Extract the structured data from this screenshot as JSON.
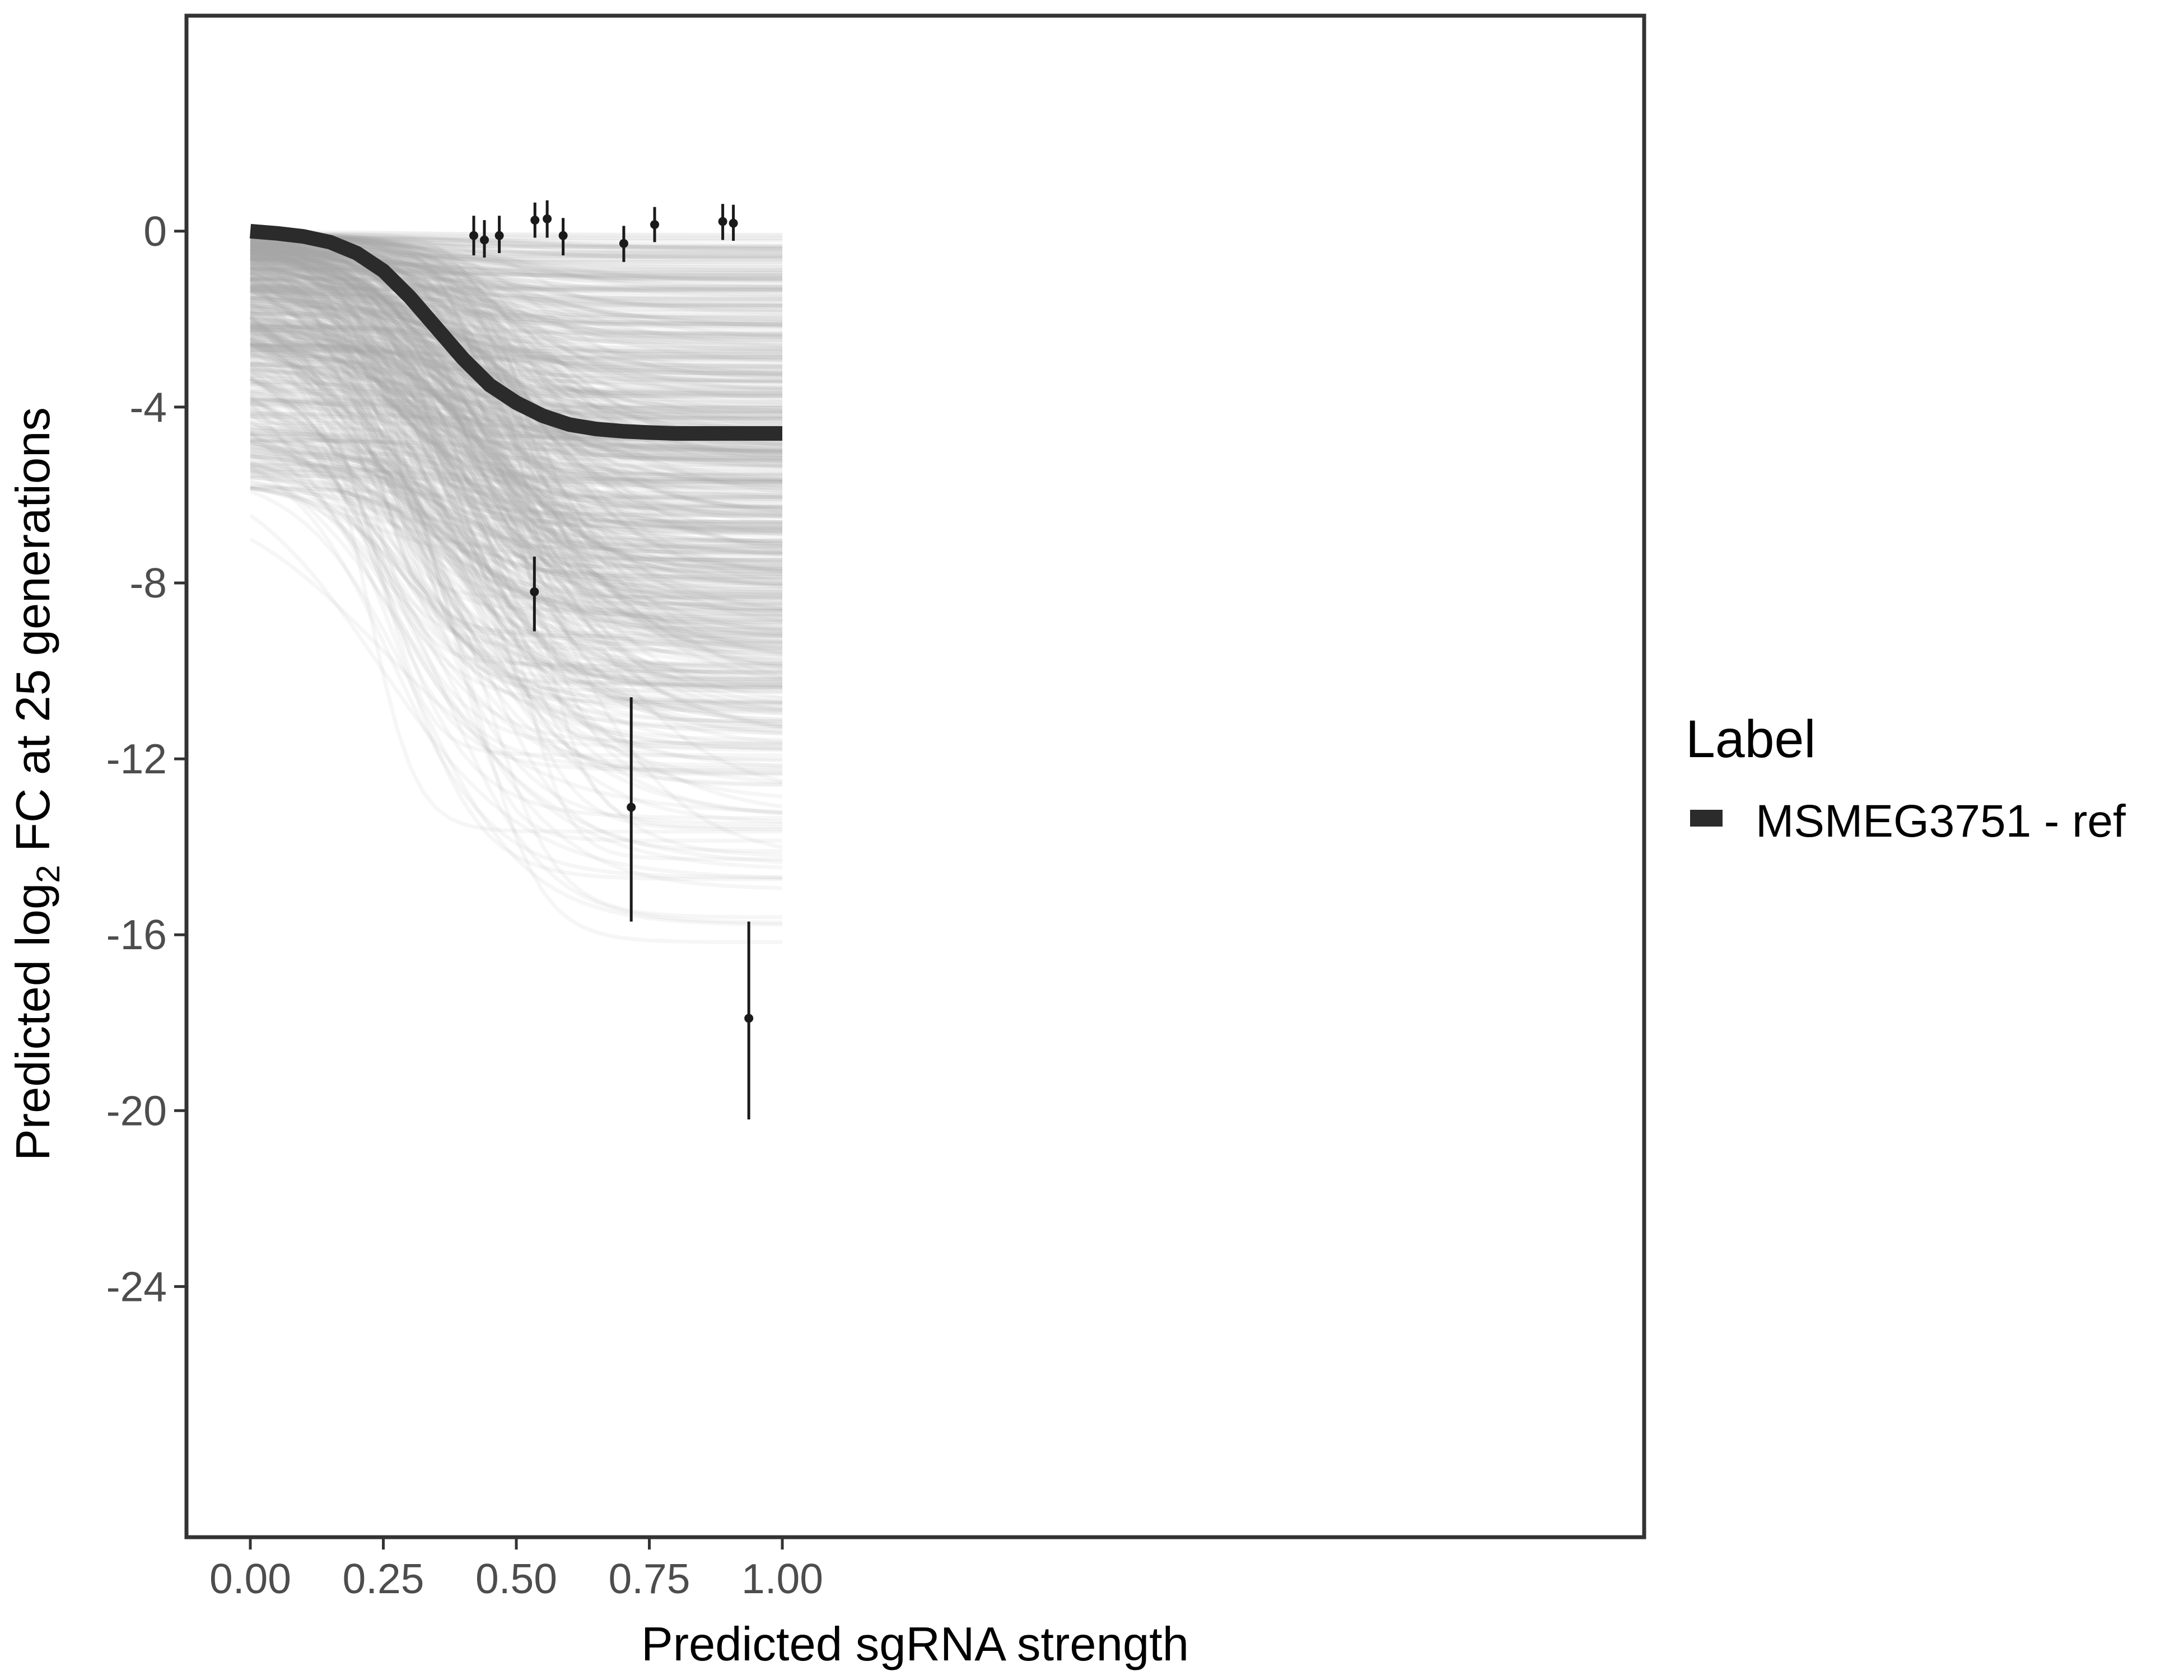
{
  "chart_data": {
    "type": "line",
    "xlabel": "Predicted sgRNA strength",
    "ylabel": {
      "prefix": "Predicted  log",
      "subscript": "2",
      "suffix": " FC at 25 generations"
    },
    "xlim": [
      -0.12,
      2.62
    ],
    "ylim": [
      -29.7,
      4.9
    ],
    "x_ticks": [
      "0.00",
      "0.25",
      "0.50",
      "0.75",
      "1.00"
    ],
    "x_tick_values": [
      0,
      0.25,
      0.5,
      0.75,
      1.0
    ],
    "y_ticks": [
      "0",
      "-4",
      "-8",
      "-12",
      "-16",
      "-20",
      "-24"
    ],
    "y_tick_values": [
      0,
      -4,
      -8,
      -12,
      -16,
      -20,
      -24
    ],
    "grid": false,
    "legend": {
      "title": "Label",
      "position": "right",
      "entries": [
        {
          "label": "MSMEG3751 - ref",
          "color": "#2b2b2b"
        }
      ]
    },
    "series": [
      {
        "name": "MSMEG3751 - ref",
        "color": "#2b2b2b",
        "x": [
          0,
          0.05,
          0.1,
          0.15,
          0.2,
          0.25,
          0.3,
          0.35,
          0.4,
          0.45,
          0.5,
          0.55,
          0.6,
          0.65,
          0.7,
          0.75,
          0.8,
          0.85,
          0.9,
          0.95,
          1.0
        ],
        "y": [
          0,
          -0.05,
          -0.12,
          -0.25,
          -0.5,
          -0.9,
          -1.5,
          -2.2,
          -2.9,
          -3.5,
          -3.9,
          -4.2,
          -4.4,
          -4.5,
          -4.55,
          -4.58,
          -4.6,
          -4.6,
          -4.6,
          -4.6,
          -4.6
        ]
      }
    ],
    "posterior_draws": {
      "description_color": "#a8a8a8",
      "count": 700
    },
    "points": [
      {
        "x": 0.42,
        "y": -0.1,
        "ymin": -0.55,
        "ymax": 0.35
      },
      {
        "x": 0.44,
        "y": -0.2,
        "ymin": -0.6,
        "ymax": 0.25
      },
      {
        "x": 0.468,
        "y": -0.1,
        "ymin": -0.5,
        "ymax": 0.35
      },
      {
        "x": 0.535,
        "y": 0.25,
        "ymin": -0.15,
        "ymax": 0.65
      },
      {
        "x": 0.558,
        "y": 0.28,
        "ymin": -0.15,
        "ymax": 0.7
      },
      {
        "x": 0.588,
        "y": -0.1,
        "ymin": -0.55,
        "ymax": 0.3
      },
      {
        "x": 0.702,
        "y": -0.28,
        "ymin": -0.7,
        "ymax": 0.12
      },
      {
        "x": 0.76,
        "y": 0.15,
        "ymin": -0.25,
        "ymax": 0.55
      },
      {
        "x": 0.888,
        "y": 0.22,
        "ymin": -0.2,
        "ymax": 0.62
      },
      {
        "x": 0.908,
        "y": 0.18,
        "ymin": -0.22,
        "ymax": 0.6
      },
      {
        "x": 0.534,
        "y": -8.2,
        "ymin": -9.1,
        "ymax": -7.4
      },
      {
        "x": 0.716,
        "y": -13.1,
        "ymin": -15.7,
        "ymax": -10.6
      },
      {
        "x": 0.937,
        "y": -17.9,
        "ymin": -20.2,
        "ymax": -15.7
      }
    ]
  }
}
